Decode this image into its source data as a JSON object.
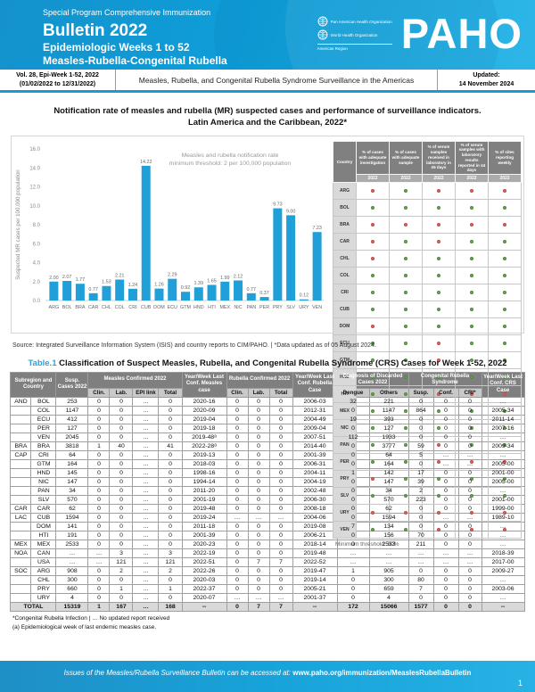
{
  "header": {
    "program": "Special Program Comprehensive Immunization",
    "title": "Bulletin 2022",
    "subtitle1": "Epidemiologic Weeks 1 to 52",
    "subtitle2": "Measles-Rubella-Congenital Rubella",
    "logo": {
      "org1": "Pan American Health Organization",
      "org2": "World Health Organization",
      "region": "Americas Region",
      "brand": "PAHO"
    }
  },
  "infobar": {
    "left_line1": "Vol. 28, Epi-Week 1-52, 2022",
    "left_line2": "(01/02/2022 to 12/31/2022)",
    "center": "Measles, Rubella, and Congenital Rubella Syndrome Surveillance in the Americas",
    "right_line1": "Updated:",
    "right_line2": "14 November 2024"
  },
  "chart_section": {
    "title_line1": "Notification rate of measles and rubella (MR) suspected cases and performance of surveillance indicators.",
    "title_line2": "Latin America and the Caribbean, 2022*",
    "source": "Source: Integrated Surveillance Information System (ISIS) and country reports to CIM/PAHO. | *Data updated as of 05 August 2024."
  },
  "chart_data": {
    "type": "bar",
    "note_lines": [
      "Measles and rubella notification rate",
      "minimum threshold: 2 per 100,000 population"
    ],
    "ylabel": "Suspected MR cases per 100,000 population",
    "xlabel": "",
    "ylim": [
      0,
      16
    ],
    "ytick_step": 2,
    "grid": false,
    "bar_color": "#219fd8",
    "categories": [
      "ARG",
      "BOL",
      "BRA",
      "CAR",
      "CHL",
      "COL",
      "CRI",
      "CUB",
      "DOM",
      "ECU",
      "GTM",
      "HND",
      "HTI",
      "MEX",
      "NIC",
      "PAN",
      "PER",
      "PRY",
      "SLV",
      "URY",
      "VEN"
    ],
    "values": [
      2.0,
      2.07,
      1.77,
      0.77,
      1.53,
      2.21,
      1.24,
      14.22,
      1.26,
      2.29,
      0.92,
      1.39,
      1.65,
      1.99,
      2.12,
      0.77,
      0.37,
      9.73,
      9.0,
      0.12,
      7.23
    ]
  },
  "indicator_table": {
    "col_headers": [
      "Country",
      "% of cases with adequate investigation",
      "% of cases with adequate sample",
      "% of serum samples received in laboratory in ≤5 days",
      "% of serum samples with laboratory results reported in ≤4 days",
      "% of sites reporting weekly"
    ],
    "year": "2022",
    "colors": {
      "green": "#63a94f",
      "red": "#df655e"
    },
    "rows": [
      {
        "country": "ARG",
        "dots": [
          "red",
          "green",
          "red",
          "red",
          "red"
        ]
      },
      {
        "country": "BOL",
        "dots": [
          "green",
          "green",
          "green",
          "green",
          "green"
        ]
      },
      {
        "country": "BRA",
        "dots": [
          "red",
          "red",
          "red",
          "red",
          "red"
        ]
      },
      {
        "country": "CAR",
        "dots": [
          "red",
          "green",
          "red",
          "green",
          "green"
        ]
      },
      {
        "country": "CHL",
        "dots": [
          "red",
          "green",
          "green",
          "green",
          "green"
        ]
      },
      {
        "country": "COL",
        "dots": [
          "green",
          "green",
          "green",
          "green",
          "green"
        ]
      },
      {
        "country": "CRI",
        "dots": [
          "green",
          "green",
          "green",
          "green",
          "green"
        ]
      },
      {
        "country": "CUB",
        "dots": [
          "green",
          "green",
          "green",
          "green",
          "green"
        ]
      },
      {
        "country": "DOM",
        "dots": [
          "red",
          "green",
          "green",
          "green",
          "green"
        ]
      },
      {
        "country": "ECU",
        "dots": [
          "green",
          "green",
          "red",
          "green",
          "green"
        ]
      },
      {
        "country": "GTM",
        "dots": [
          "green",
          "green",
          "red",
          "green",
          "green"
        ]
      },
      {
        "country": "HND",
        "dots": [
          "green",
          "green",
          "green",
          "green",
          "green"
        ]
      },
      {
        "country": "HTI",
        "dots": [
          "green",
          "green",
          "red",
          "red",
          "red"
        ]
      },
      {
        "country": "MEX",
        "dots": [
          "green",
          "green",
          "green",
          "green",
          "green"
        ]
      },
      {
        "country": "NIC",
        "dots": [
          "green",
          "green",
          "green",
          "green",
          "green"
        ]
      },
      {
        "country": "PAN",
        "dots": [
          "green",
          "green",
          "red",
          "green",
          "green"
        ]
      },
      {
        "country": "PER",
        "dots": [
          "green",
          "green",
          "red",
          "red",
          "red"
        ]
      },
      {
        "country": "PRY",
        "dots": [
          "red",
          "green",
          "green",
          "green",
          "green"
        ]
      },
      {
        "country": "SLV",
        "dots": [
          "green",
          "green",
          "green",
          "green",
          "green"
        ]
      },
      {
        "country": "URY",
        "dots": [
          "red",
          "red",
          "red",
          "red",
          "red"
        ]
      },
      {
        "country": "VEN",
        "dots": [
          "green",
          "green",
          "red",
          "red",
          "red"
        ]
      }
    ],
    "note": "Minimum threshold: 80%"
  },
  "main_table": {
    "title_prefix": "Table.1",
    "title": "Classification of Suspect Measles, Rubella, and Congenital Rubella Syndrome (CRS) Cases for Week 1-52, 2022",
    "col_groups": {
      "subregion_country": "Subregion and Country",
      "susp_cases": "Susp. Cases 2022",
      "measles_confirmed": "Measles Confirmed 2022",
      "yw_measles": "Year/Week Last Conf. Measles case",
      "rubella_confirmed": "Rubella Confirmed 2022",
      "yw_rubella": "Year/Week Last Conf. Rubella Case",
      "discarded": "Diagnosis of Discarded Cases 2022",
      "crs": "Congenital Rubella Syndrome",
      "yw_crs": "Year/Week Last Conf. CRS Case"
    },
    "sub_headers": [
      "Clin.",
      "Lab.",
      "EPI link",
      "Total",
      "Clin.",
      "Lab.",
      "Total",
      "Dengue",
      "Others",
      "Susp.",
      "Conf.",
      "CRI*"
    ],
    "rows": [
      [
        "AND",
        "BOL",
        "253",
        "0",
        "0",
        "…",
        "0",
        "2020-16",
        "0",
        "0",
        "0",
        "2006-03",
        "32",
        "221",
        "0",
        "0",
        "0",
        "…"
      ],
      [
        "",
        "COL",
        "1147",
        "0",
        "0",
        "…",
        "0",
        "2020-09",
        "0",
        "0",
        "0",
        "2012-31",
        "0",
        "1147",
        "864",
        "0",
        "0",
        "2005-34"
      ],
      [
        "",
        "ECU",
        "412",
        "0",
        "0",
        "…",
        "0",
        "2019-04",
        "0",
        "0",
        "0",
        "2004-49",
        "19",
        "393",
        "0",
        "0",
        "0",
        "2011-14"
      ],
      [
        "",
        "PER",
        "127",
        "0",
        "0",
        "…",
        "0",
        "2019-18",
        "0",
        "0",
        "0",
        "2009-04",
        "0",
        "127",
        "0",
        "0",
        "0",
        "2007-16"
      ],
      [
        "",
        "VEN",
        "2045",
        "0",
        "0",
        "…",
        "0",
        "2019-48ᵃ",
        "0",
        "0",
        "0",
        "2007-51",
        "112",
        "1933",
        "0",
        "0",
        "0",
        "…"
      ],
      [
        "BRA",
        "BRA",
        "3818",
        "1",
        "40",
        "…",
        "41",
        "2022-28ᵃ",
        "0",
        "0",
        "0",
        "2014-40",
        "0",
        "3777",
        "59",
        "0",
        "0",
        "2009-34"
      ],
      [
        "CAP",
        "CRI",
        "64",
        "0",
        "0",
        "…",
        "0",
        "2019-13",
        "0",
        "0",
        "0",
        "2001-39",
        "0",
        "64",
        "5",
        "…",
        "…",
        "…"
      ],
      [
        "",
        "GTM",
        "164",
        "0",
        "0",
        "…",
        "0",
        "2018-03",
        "0",
        "0",
        "0",
        "2006-31",
        "0",
        "164",
        "0",
        "…",
        "…",
        "2005-00"
      ],
      [
        "",
        "HND",
        "145",
        "0",
        "0",
        "…",
        "0",
        "1998-16",
        "0",
        "0",
        "0",
        "2004-11",
        "1",
        "142",
        "17",
        "0",
        "0",
        "2001-00"
      ],
      [
        "",
        "NIC",
        "147",
        "0",
        "0",
        "…",
        "0",
        "1994-14",
        "0",
        "0",
        "0",
        "2004-19",
        "0",
        "147",
        "39",
        "0",
        "0",
        "2005-00"
      ],
      [
        "",
        "PAN",
        "34",
        "0",
        "0",
        "…",
        "0",
        "2011-20",
        "0",
        "0",
        "0",
        "2002-48",
        "0",
        "34",
        "2",
        "0",
        "0",
        "…"
      ],
      [
        "",
        "SLV",
        "570",
        "0",
        "0",
        "…",
        "0",
        "2001-19",
        "0",
        "0",
        "0",
        "2006-30",
        "0",
        "570",
        "223",
        "0",
        "0",
        "2001-00"
      ],
      [
        "CAR",
        "CAR",
        "62",
        "0",
        "0",
        "…",
        "0",
        "2019-48",
        "0",
        "0",
        "0",
        "2008-18",
        "0",
        "62",
        "0",
        "0",
        "0",
        "1999-00"
      ],
      [
        "LAC",
        "CUB",
        "1594",
        "0",
        "0",
        "…",
        "0",
        "2019-24",
        "…",
        "…",
        "…",
        "2004-06",
        "0",
        "1594",
        "0",
        "…",
        "…",
        "1989-10"
      ],
      [
        "",
        "DOM",
        "141",
        "0",
        "0",
        "…",
        "0",
        "2011-18",
        "0",
        "0",
        "0",
        "2019-08",
        "7",
        "134",
        "0",
        "0",
        "0",
        "…"
      ],
      [
        "",
        "HTI",
        "191",
        "0",
        "0",
        "…",
        "0",
        "2001-39",
        "0",
        "0",
        "0",
        "2006-21",
        "0",
        "156",
        "70",
        "0",
        "0",
        "…"
      ],
      [
        "MEX",
        "MEX",
        "2533",
        "0",
        "0",
        "…",
        "0",
        "2020-23",
        "0",
        "0",
        "0",
        "2018-14",
        "0",
        "2533",
        "211",
        "0",
        "0",
        "…"
      ],
      [
        "NOA",
        "CAN",
        "…",
        "…",
        "3",
        "…",
        "3",
        "2022-19",
        "0",
        "0",
        "0",
        "2019-48",
        "…",
        "…",
        "…",
        "…",
        "…",
        "2018-39"
      ],
      [
        "",
        "USA",
        "…",
        "…",
        "121",
        "…",
        "121",
        "2022-51",
        "0",
        "7",
        "7",
        "2022-52",
        "…",
        "…",
        "…",
        "…",
        "…",
        "2017-00"
      ],
      [
        "SOC",
        "ARG",
        "908",
        "0",
        "2",
        "…",
        "2",
        "2022-26",
        "0",
        "0",
        "0",
        "2019-47",
        "1",
        "905",
        "0",
        "0",
        "0",
        "2009-27"
      ],
      [
        "",
        "CHL",
        "300",
        "0",
        "0",
        "…",
        "0",
        "2020-03",
        "0",
        "0",
        "0",
        "2019-14",
        "0",
        "300",
        "80",
        "0",
        "0",
        "…"
      ],
      [
        "",
        "PRY",
        "660",
        "0",
        "1",
        "…",
        "1",
        "2022-37",
        "0",
        "0",
        "0",
        "2005-21",
        "0",
        "659",
        "7",
        "0",
        "0",
        "2003-06"
      ],
      [
        "",
        "URY",
        "4",
        "0",
        "0",
        "…",
        "0",
        "2020-07",
        "…",
        "…",
        "…",
        "2001-37",
        "0",
        "4",
        "0",
        "0",
        "0",
        "…"
      ]
    ],
    "total_row": [
      "TOTAL",
      "15319",
      "1",
      "167",
      "…",
      "168",
      "--",
      "0",
      "7",
      "7",
      "--",
      "172",
      "15066",
      "1577",
      "0",
      "0",
      "--"
    ],
    "footnote1": "*Congenital Rubella Infection  |  … No updated report received",
    "footnote2": "(a) Epidemiological week of last endemic measles case."
  },
  "footer": {
    "text_italic": "Issues of the Measles/Rubella Surveillance Bulletin can be accessed at:",
    "url": "www.paho.org/immunization/MeaslesRubellaBulletin",
    "page": "1"
  }
}
